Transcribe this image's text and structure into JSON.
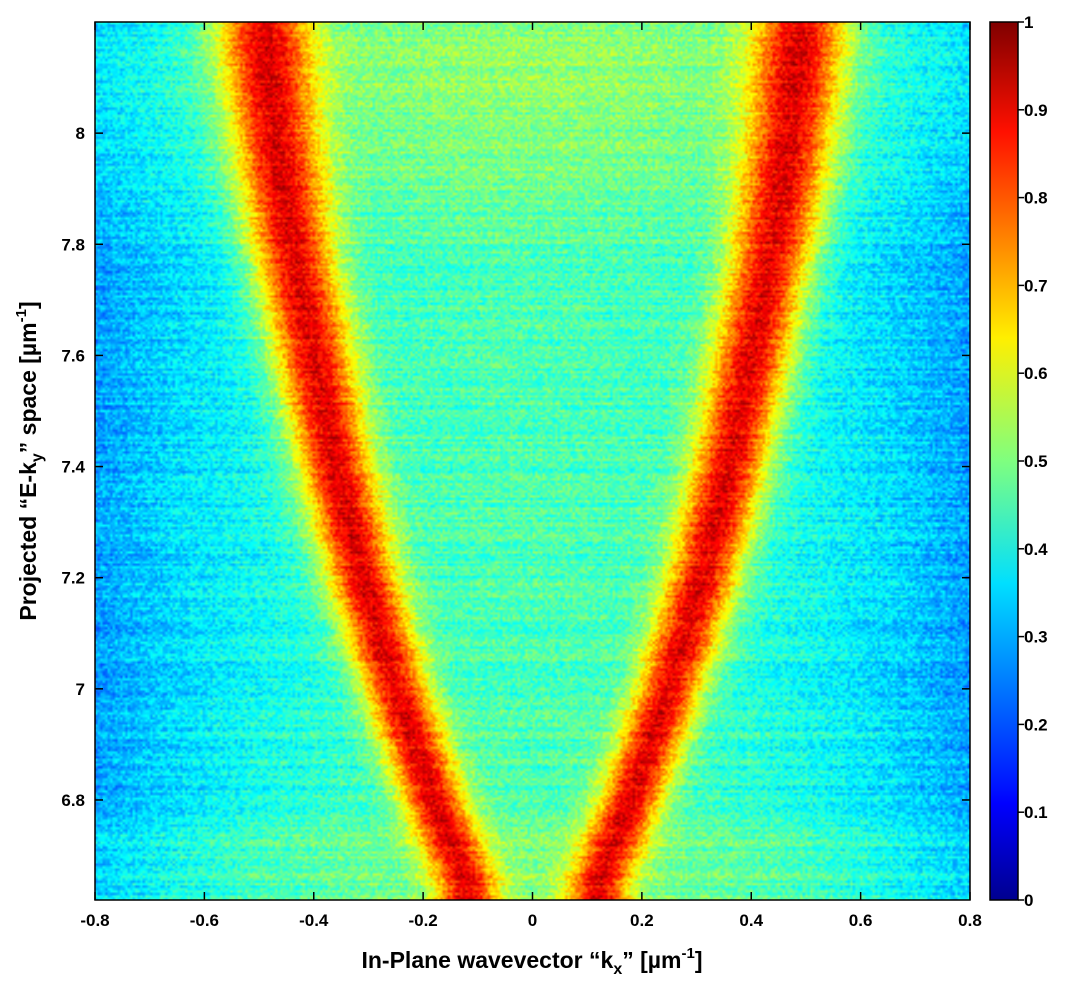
{
  "chart_data": {
    "type": "heatmap",
    "title": "",
    "xlabel": {
      "text": "In-Plane wavevector “k",
      "sub": "x",
      "post": "” [µm",
      "sup": "-1",
      "end": "]"
    },
    "ylabel": {
      "text": "Projected “E-k",
      "sub": "y",
      "post": "” space [µm",
      "sup": "-1",
      "end": "]"
    },
    "xlim": [
      -0.8,
      0.8
    ],
    "ylim": [
      6.62,
      8.2
    ],
    "x_ticks": [
      -0.8,
      -0.6,
      -0.4,
      -0.2,
      0,
      0.2,
      0.4,
      0.6,
      0.8
    ],
    "x_tick_labels": [
      "-0.8",
      "-0.6",
      "-0.4",
      "-0.2",
      "0",
      "0.2",
      "0.4",
      "0.6",
      "0.8"
    ],
    "y_ticks": [
      6.8,
      7.0,
      7.2,
      7.4,
      7.6,
      7.8,
      8.0
    ],
    "y_tick_labels": [
      "6.8",
      "7",
      "7.2",
      "7.4",
      "7.6",
      "7.8",
      "8"
    ],
    "colorbar": {
      "colormap": "jet",
      "limits": [
        0,
        1
      ],
      "ticks": [
        0,
        0.1,
        0.2,
        0.3,
        0.4,
        0.5,
        0.6,
        0.7,
        0.8,
        0.9,
        1
      ],
      "tick_labels": [
        "0",
        "0.1",
        "0.2",
        "0.3",
        "0.4",
        "0.5",
        "0.6",
        "0.7",
        "0.8",
        "0.9",
        "1"
      ]
    },
    "dispersion_branches": {
      "description_points": [
        {
          "y": 6.65,
          "kx": 0.12
        },
        {
          "y": 6.8,
          "kx": 0.18
        },
        {
          "y": 7.0,
          "kx": 0.25
        },
        {
          "y": 7.2,
          "kx": 0.31
        },
        {
          "y": 7.4,
          "kx": 0.36
        },
        {
          "y": 7.6,
          "kx": 0.4
        },
        {
          "y": 7.8,
          "kx": 0.44
        },
        {
          "y": 8.0,
          "kx": 0.47
        },
        {
          "y": 8.2,
          "kx": 0.49
        }
      ],
      "symmetric": true,
      "peak_intensity": 0.9
    },
    "background_intensity": {
      "center": 0.45,
      "edge": 0.28
    }
  }
}
